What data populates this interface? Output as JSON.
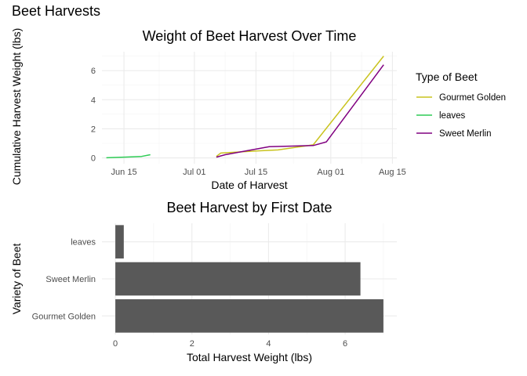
{
  "page": {
    "title": "Beet Harvests"
  },
  "chart_data": [
    {
      "type": "line",
      "title": "Weight of Beet Harvest Over Time",
      "xlabel": "Date of Harvest",
      "ylabel": "Cumulative Harvest Weight (lbs)",
      "x_ticks": [
        {
          "label": "Jun 15",
          "date": "2023-06-15"
        },
        {
          "label": "Jul 01",
          "date": "2023-07-01"
        },
        {
          "label": "Jul 15",
          "date": "2023-07-15"
        },
        {
          "label": "Aug 01",
          "date": "2023-08-01"
        },
        {
          "label": "Aug 15",
          "date": "2023-08-15"
        }
      ],
      "xlim": [
        "2023-06-10",
        "2023-08-16"
      ],
      "ylim": [
        -0.4,
        7.3
      ],
      "y_ticks": [
        0,
        2,
        4,
        6
      ],
      "grid": true,
      "legend": {
        "title": "Type of Beet",
        "position": "right"
      },
      "series": [
        {
          "name": "Gourmet Golden",
          "color": "#c9c31e",
          "points": [
            {
              "x": "2023-07-06",
              "y": 0.1
            },
            {
              "x": "2023-07-07",
              "y": 0.33
            },
            {
              "x": "2023-07-15",
              "y": 0.47
            },
            {
              "x": "2023-07-20",
              "y": 0.55
            },
            {
              "x": "2023-07-28",
              "y": 0.9
            },
            {
              "x": "2023-08-13",
              "y": 7.0
            }
          ]
        },
        {
          "name": "leaves",
          "color": "#2ecc55",
          "points": [
            {
              "x": "2023-06-11",
              "y": 0.01
            },
            {
              "x": "2023-06-15",
              "y": 0.05
            },
            {
              "x": "2023-06-19",
              "y": 0.1
            },
            {
              "x": "2023-06-21",
              "y": 0.22
            }
          ]
        },
        {
          "name": "Sweet Merlin",
          "color": "#800080",
          "points": [
            {
              "x": "2023-07-06",
              "y": 0.05
            },
            {
              "x": "2023-07-08",
              "y": 0.22
            },
            {
              "x": "2023-07-18",
              "y": 0.77
            },
            {
              "x": "2023-07-28",
              "y": 0.85
            },
            {
              "x": "2023-07-31",
              "y": 1.1
            },
            {
              "x": "2023-08-13",
              "y": 6.4
            }
          ]
        }
      ]
    },
    {
      "type": "bar",
      "orientation": "horizontal",
      "title": "Beet Harvest by First Date",
      "xlabel": "Total Harvest Weight (lbs)",
      "ylabel": "Variety of Beet",
      "categories": [
        "leaves",
        "Sweet Merlin",
        "Gourmet Golden"
      ],
      "values": [
        0.22,
        6.4,
        7.0
      ],
      "bar_color": "#595959",
      "xlim": [
        -0.35,
        7.35
      ],
      "x_ticks": [
        0,
        2,
        4,
        6
      ],
      "grid": true
    }
  ]
}
